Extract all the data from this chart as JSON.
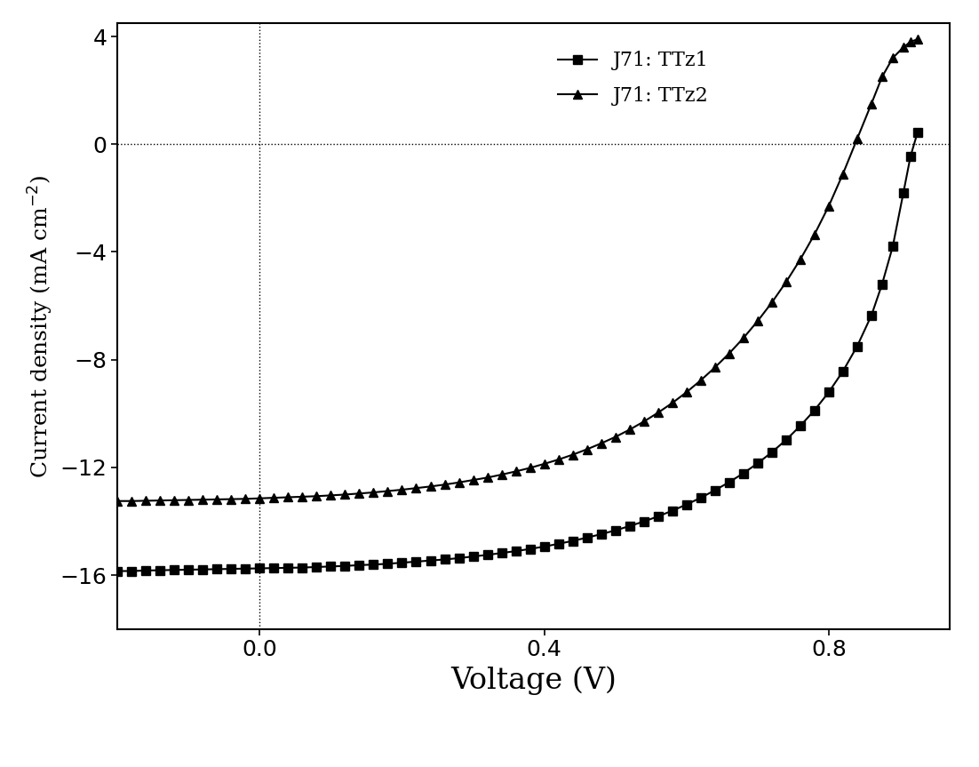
{
  "title": "",
  "xlabel": "Voltage (V)",
  "ylabel": "Current density (mA cm$^{-2}$)",
  "xlim": [
    -0.2,
    0.97
  ],
  "ylim": [
    -18,
    4.5
  ],
  "xticks": [
    0.0,
    0.4,
    0.8
  ],
  "xticklabels": [
    "0.0",
    "0.4",
    "0.8"
  ],
  "yticks": [
    4,
    0,
    -4,
    -8,
    -12,
    -16
  ],
  "background_color": "#ffffff",
  "line_color": "#000000",
  "series": [
    {
      "label": "J71: TTz1",
      "marker": "s",
      "x": [
        -0.2,
        -0.18,
        -0.16,
        -0.14,
        -0.12,
        -0.1,
        -0.08,
        -0.06,
        -0.04,
        -0.02,
        0.0,
        0.02,
        0.04,
        0.06,
        0.08,
        0.1,
        0.12,
        0.14,
        0.16,
        0.18,
        0.2,
        0.22,
        0.24,
        0.26,
        0.28,
        0.3,
        0.32,
        0.34,
        0.36,
        0.38,
        0.4,
        0.42,
        0.44,
        0.46,
        0.48,
        0.5,
        0.52,
        0.54,
        0.56,
        0.58,
        0.6,
        0.62,
        0.64,
        0.66,
        0.68,
        0.7,
        0.72,
        0.74,
        0.76,
        0.78,
        0.8,
        0.82,
        0.84,
        0.86,
        0.875,
        0.89,
        0.905,
        0.915,
        0.925
      ],
      "y": [
        -15.85,
        -15.85,
        -15.83,
        -15.82,
        -15.81,
        -15.8,
        -15.79,
        -15.78,
        -15.77,
        -15.76,
        -15.75,
        -15.74,
        -15.73,
        -15.72,
        -15.7,
        -15.68,
        -15.66,
        -15.63,
        -15.61,
        -15.58,
        -15.54,
        -15.5,
        -15.46,
        -15.42,
        -15.37,
        -15.31,
        -15.25,
        -15.18,
        -15.11,
        -15.03,
        -14.94,
        -14.84,
        -14.73,
        -14.61,
        -14.48,
        -14.34,
        -14.18,
        -14.01,
        -13.82,
        -13.61,
        -13.38,
        -13.13,
        -12.85,
        -12.55,
        -12.22,
        -11.85,
        -11.44,
        -10.98,
        -10.46,
        -9.88,
        -9.21,
        -8.43,
        -7.5,
        -6.36,
        -5.2,
        -3.8,
        -1.8,
        -0.45,
        0.45
      ]
    },
    {
      "label": "J71: TTz2",
      "marker": "^",
      "x": [
        -0.2,
        -0.18,
        -0.16,
        -0.14,
        -0.12,
        -0.1,
        -0.08,
        -0.06,
        -0.04,
        -0.02,
        0.0,
        0.02,
        0.04,
        0.06,
        0.08,
        0.1,
        0.12,
        0.14,
        0.16,
        0.18,
        0.2,
        0.22,
        0.24,
        0.26,
        0.28,
        0.3,
        0.32,
        0.34,
        0.36,
        0.38,
        0.4,
        0.42,
        0.44,
        0.46,
        0.48,
        0.5,
        0.52,
        0.54,
        0.56,
        0.58,
        0.6,
        0.62,
        0.64,
        0.66,
        0.68,
        0.7,
        0.72,
        0.74,
        0.76,
        0.78,
        0.8,
        0.82,
        0.84,
        0.86,
        0.875,
        0.89,
        0.905,
        0.915,
        0.925
      ],
      "y": [
        -13.25,
        -13.25,
        -13.24,
        -13.23,
        -13.22,
        -13.21,
        -13.2,
        -13.19,
        -13.18,
        -13.17,
        -13.15,
        -13.13,
        -13.11,
        -13.09,
        -13.07,
        -13.04,
        -13.01,
        -12.97,
        -12.93,
        -12.88,
        -12.83,
        -12.77,
        -12.71,
        -12.64,
        -12.56,
        -12.47,
        -12.38,
        -12.27,
        -12.15,
        -12.02,
        -11.87,
        -11.71,
        -11.53,
        -11.33,
        -11.11,
        -10.87,
        -10.6,
        -10.3,
        -9.97,
        -9.61,
        -9.21,
        -8.77,
        -8.29,
        -7.77,
        -7.2,
        -6.57,
        -5.88,
        -5.12,
        -4.28,
        -3.35,
        -2.3,
        -1.1,
        0.2,
        1.5,
        2.5,
        3.2,
        3.6,
        3.8,
        3.9
      ]
    }
  ],
  "hline_y": 0,
  "vline_x": 0,
  "hline_style": "dotted",
  "vline_style": "dotted",
  "markersize": 7,
  "linewidth": 1.5,
  "xlabel_fontsize": 24,
  "ylabel_fontsize": 18,
  "tick_fontsize": 18,
  "legend_fontsize": 16
}
